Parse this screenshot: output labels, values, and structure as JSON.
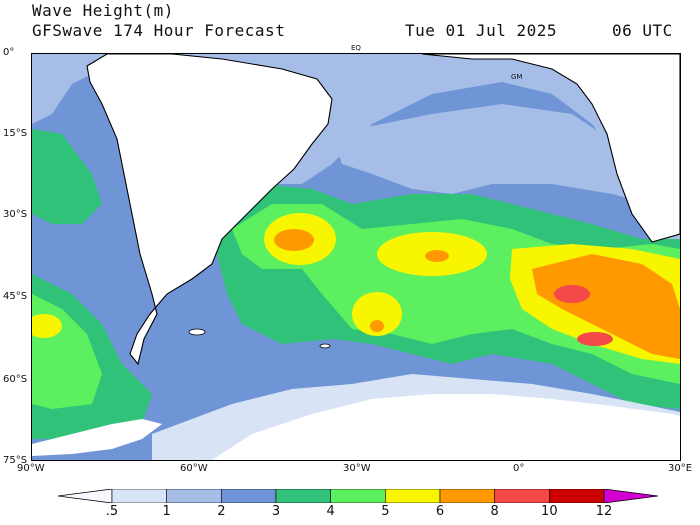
{
  "header": {
    "title_line1": "Wave Height(m)",
    "title_line2": "GFSwave 174 Hour Forecast",
    "date": "Tue 01 Jul 2025",
    "time": "06 UTC"
  },
  "map": {
    "lat_labels": [
      "0°",
      "15°S",
      "30°S",
      "45°S",
      "60°S",
      "75°S"
    ],
    "lon_labels": [
      "90°W",
      "60°W",
      "30°W",
      "0°",
      "30°E"
    ],
    "markers": [
      "EQ",
      "GM"
    ]
  },
  "legend": {
    "labels": [
      ".5",
      "1",
      "2",
      "3",
      "4",
      "5",
      "6",
      "8",
      "10",
      "12"
    ],
    "colors": [
      "#f8f8ff",
      "#d8e4f5",
      "#a6bde8",
      "#6f95d6",
      "#31c27a",
      "#5cf060",
      "#f8f500",
      "#ff9900",
      "#f54848",
      "#cc0000",
      "#d000d0"
    ]
  },
  "colors": {
    "land": "#ffffff",
    "coast": "#000000"
  }
}
